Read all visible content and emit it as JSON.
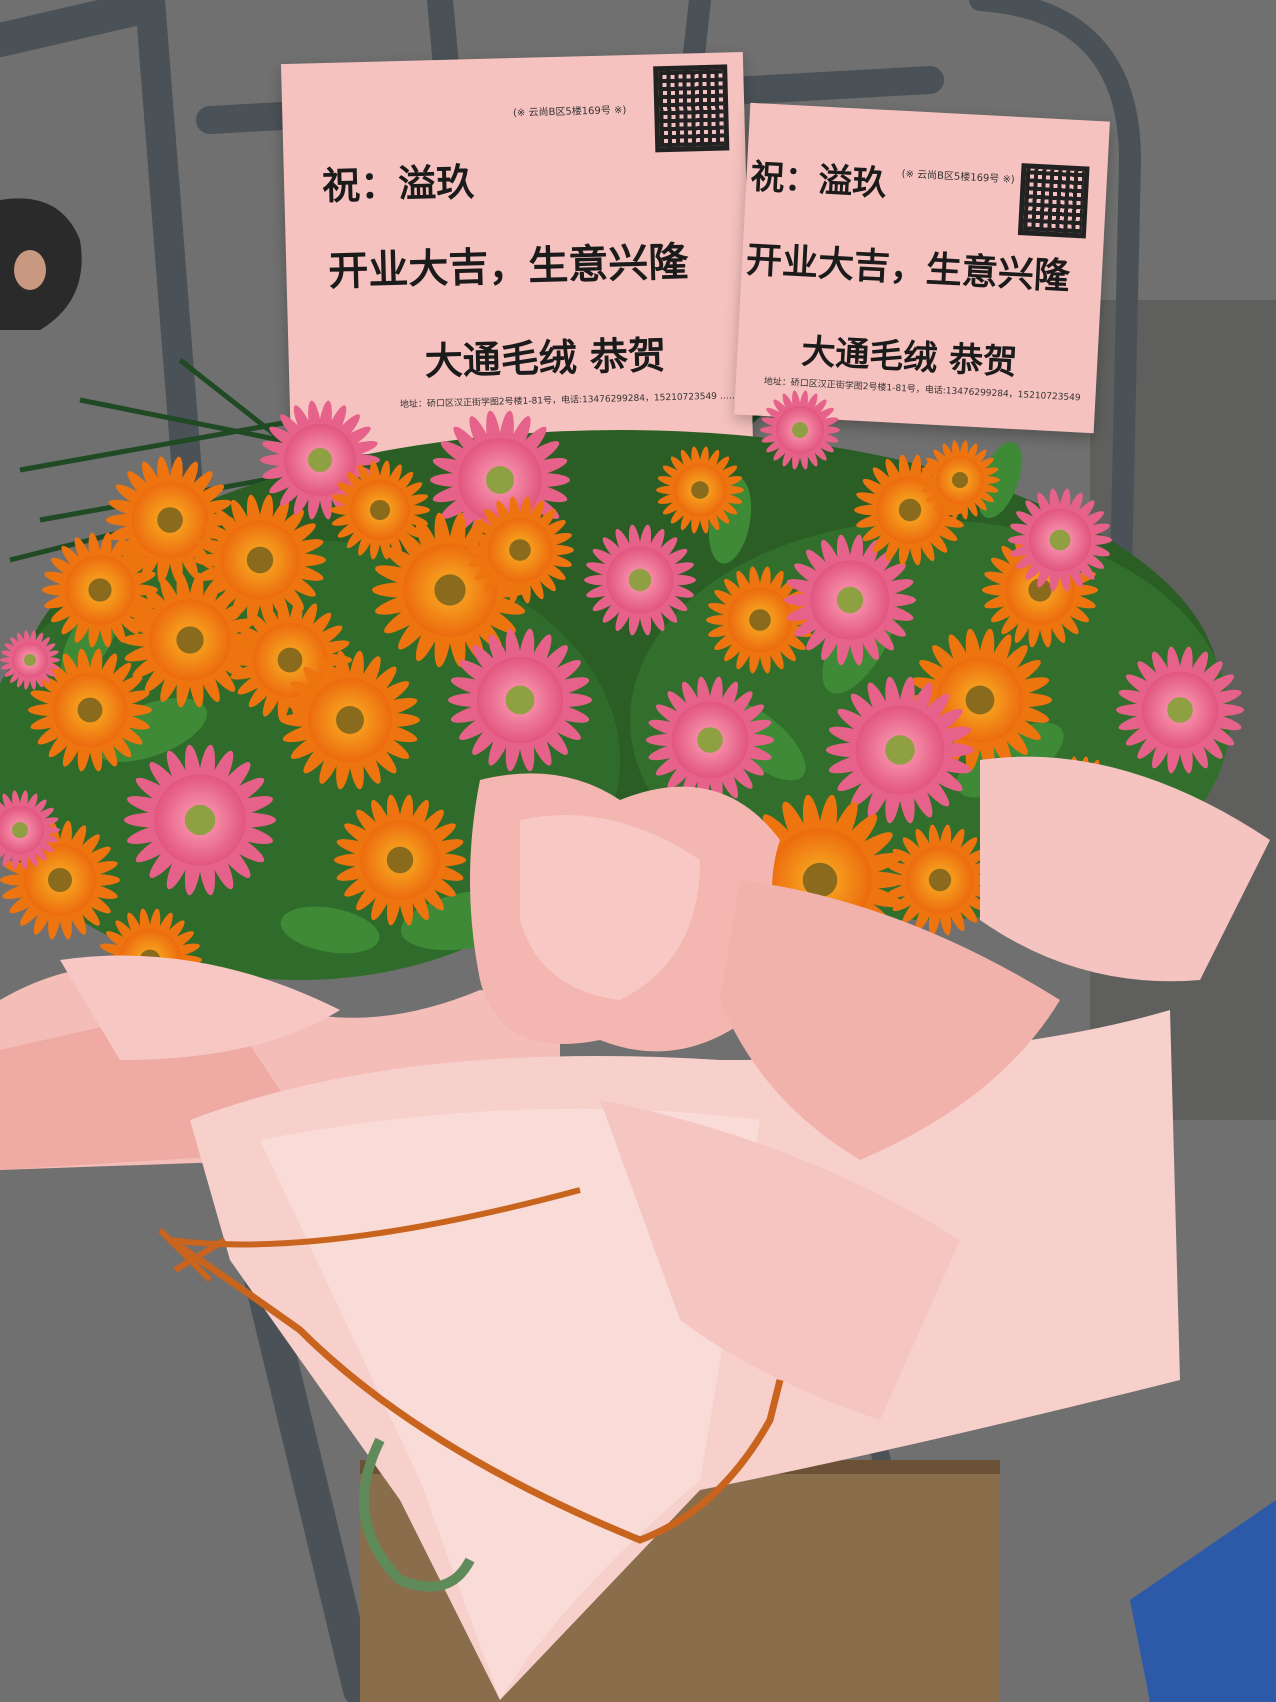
{
  "image": {
    "subject": "flower-basket",
    "colors": {
      "wrap_pink": "#f5c4c0",
      "ribbon_orange": "#c8641e",
      "gerbera_orange": "#f07b12",
      "gerbera_pink": "#ec6f93",
      "leaf_green": "#2f6b2a",
      "card_pink": "#f6c2bf",
      "ground_gray": "#6f706f"
    }
  },
  "cards": [
    {
      "address_top": "(※ 云尚B区5楼169号 ※)",
      "to": "祝：溢玖",
      "message": "开业大吉，生意兴隆",
      "from": "大通毛绒   恭贺",
      "address_bottom": "地址：硚口区汉正街学图2号楼1-81号，电话:13476299284，15210723549 ……",
      "icons": [
        "qr-code-icon"
      ]
    },
    {
      "address_top": "(※ 云尚B区5楼169号 ※)",
      "to": "祝：溢玖",
      "message": "开业大吉，生意兴隆",
      "from": "大通毛绒   恭贺",
      "address_bottom": "地址：硚口区汉正街学图2号楼1-81号，电话:13476299284，15210723549 ……",
      "icons": [
        "qr-code-icon"
      ]
    }
  ]
}
